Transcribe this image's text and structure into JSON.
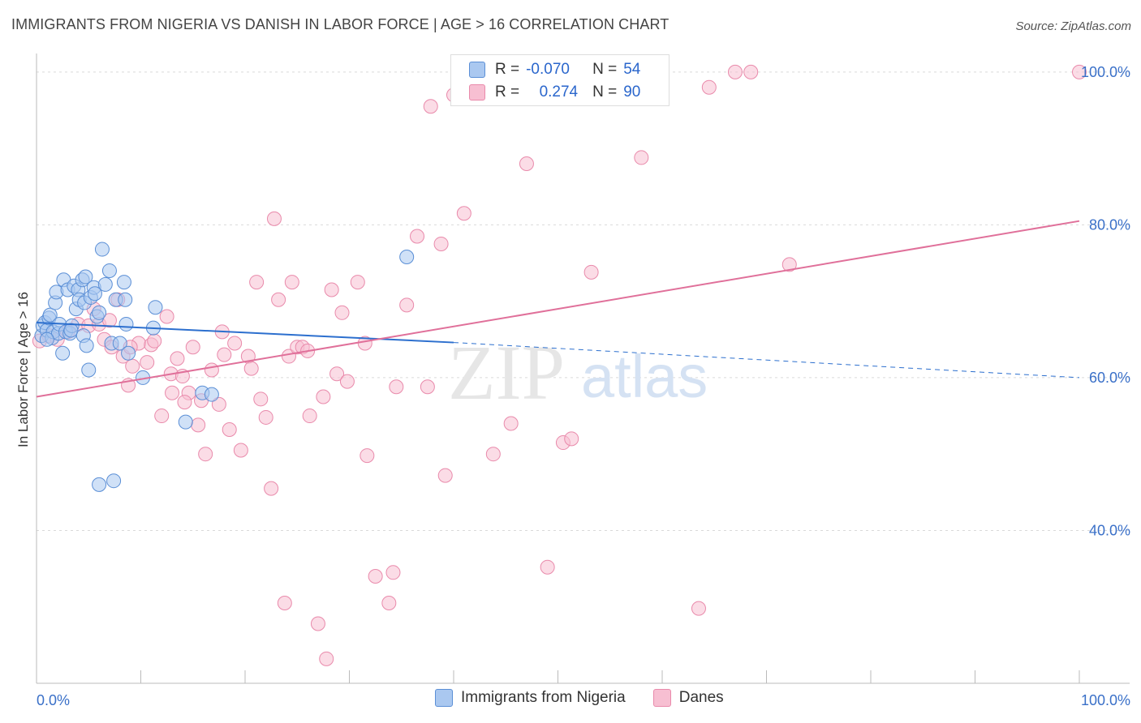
{
  "title": "IMMIGRANTS FROM NIGERIA VS DANISH IN LABOR FORCE | AGE > 16 CORRELATION CHART",
  "source": "Source: ZipAtlas.com",
  "watermark": {
    "zip": "ZIP",
    "atlas": "atlas"
  },
  "legend": {
    "rows": [
      {
        "r_label": "R =",
        "r_value": "-0.070",
        "n_label": "N =",
        "n_value": "54"
      },
      {
        "r_label": "R =",
        "r_value": "0.274",
        "n_label": "N =",
        "n_value": "90"
      }
    ]
  },
  "bottom_legend": [
    "Immigrants from Nigeria",
    "Danes"
  ],
  "colors": {
    "blue_fill": "#aac8f0",
    "blue_stroke": "#5b8fd6",
    "blue_line": "#2c6fce",
    "pink_fill": "#f7bfd2",
    "pink_stroke": "#e98aab",
    "pink_line": "#e0709a",
    "axis_text": "#3a70c8",
    "grid": "#d9d9d9"
  },
  "chart_data": {
    "type": "scatter",
    "xlabel": "",
    "ylabel": "In Labor Force | Age > 16",
    "xlim": [
      0,
      100
    ],
    "ylim": [
      20,
      102
    ],
    "x_tick_labels": [
      "0.0%",
      "100.0%"
    ],
    "y_ticks": [
      40,
      60,
      80,
      100
    ],
    "y_tick_labels": [
      "40.0%",
      "60.0%",
      "80.0%",
      "100.0%"
    ],
    "grid": true,
    "series": [
      {
        "name": "Immigrants from Nigeria",
        "points": [
          [
            0.5,
            65.5
          ],
          [
            0.6,
            66.8
          ],
          [
            0.8,
            67.2
          ],
          [
            1.0,
            66.2
          ],
          [
            1.2,
            67.8
          ],
          [
            1.3,
            68.2
          ],
          [
            1.5,
            65.2
          ],
          [
            1.6,
            66.0
          ],
          [
            1.8,
            69.8
          ],
          [
            1.9,
            71.2
          ],
          [
            2.1,
            65.8
          ],
          [
            2.2,
            67.0
          ],
          [
            2.5,
            63.2
          ],
          [
            2.6,
            72.8
          ],
          [
            2.8,
            66.0
          ],
          [
            3.0,
            71.5
          ],
          [
            3.2,
            65.8
          ],
          [
            3.4,
            66.8
          ],
          [
            3.6,
            72.0
          ],
          [
            3.8,
            69.0
          ],
          [
            4.0,
            71.5
          ],
          [
            4.1,
            70.2
          ],
          [
            4.4,
            72.8
          ],
          [
            4.5,
            65.5
          ],
          [
            4.6,
            69.8
          ],
          [
            4.7,
            73.2
          ],
          [
            4.8,
            64.2
          ],
          [
            5.2,
            70.5
          ],
          [
            5.5,
            71.8
          ],
          [
            5.6,
            71.0
          ],
          [
            5.8,
            68.0
          ],
          [
            6.0,
            68.5
          ],
          [
            6.3,
            76.8
          ],
          [
            6.6,
            72.2
          ],
          [
            7.0,
            74.0
          ],
          [
            7.2,
            64.5
          ],
          [
            7.6,
            70.2
          ],
          [
            8.0,
            64.5
          ],
          [
            8.4,
            72.5
          ],
          [
            8.5,
            70.2
          ],
          [
            8.6,
            67.0
          ],
          [
            8.8,
            63.2
          ],
          [
            10.2,
            60.0
          ],
          [
            11.2,
            66.5
          ],
          [
            11.4,
            69.2
          ],
          [
            14.3,
            54.2
          ],
          [
            15.9,
            58.0
          ],
          [
            16.8,
            57.8
          ],
          [
            35.5,
            75.8
          ],
          [
            6.0,
            46.0
          ],
          [
            7.4,
            46.5
          ],
          [
            1.0,
            65.0
          ],
          [
            5.0,
            61.0
          ],
          [
            3.3,
            66.2
          ]
        ]
      },
      {
        "name": "Danes",
        "points": [
          [
            0.3,
            64.8
          ],
          [
            1.2,
            65.5
          ],
          [
            2.0,
            65.0
          ],
          [
            3.0,
            66.0
          ],
          [
            4.0,
            67.0
          ],
          [
            5.0,
            66.8
          ],
          [
            5.5,
            69.0
          ],
          [
            6.0,
            67.0
          ],
          [
            6.5,
            65.0
          ],
          [
            7.0,
            67.5
          ],
          [
            7.2,
            64.0
          ],
          [
            7.8,
            70.2
          ],
          [
            8.3,
            62.8
          ],
          [
            8.8,
            59.0
          ],
          [
            9.2,
            61.5
          ],
          [
            9.8,
            64.5
          ],
          [
            10.6,
            62.0
          ],
          [
            11.0,
            64.3
          ],
          [
            11.3,
            64.8
          ],
          [
            12.0,
            55.0
          ],
          [
            12.5,
            68.0
          ],
          [
            12.9,
            60.5
          ],
          [
            13.5,
            62.5
          ],
          [
            14.0,
            60.2
          ],
          [
            14.6,
            58.0
          ],
          [
            15.0,
            64.0
          ],
          [
            15.5,
            53.8
          ],
          [
            15.8,
            57.0
          ],
          [
            16.2,
            50.0
          ],
          [
            16.8,
            61.0
          ],
          [
            17.5,
            56.5
          ],
          [
            17.8,
            66.0
          ],
          [
            18.5,
            53.2
          ],
          [
            19.0,
            64.5
          ],
          [
            19.6,
            50.5
          ],
          [
            20.3,
            62.8
          ],
          [
            20.6,
            61.2
          ],
          [
            21.1,
            72.5
          ],
          [
            21.5,
            57.2
          ],
          [
            22.0,
            54.8
          ],
          [
            22.5,
            45.5
          ],
          [
            22.8,
            80.8
          ],
          [
            23.2,
            70.2
          ],
          [
            23.8,
            30.5
          ],
          [
            24.2,
            62.8
          ],
          [
            24.5,
            72.5
          ],
          [
            25.0,
            64.0
          ],
          [
            25.5,
            64.0
          ],
          [
            26.2,
            55.0
          ],
          [
            27.0,
            27.8
          ],
          [
            27.5,
            57.5
          ],
          [
            27.8,
            23.2
          ],
          [
            28.3,
            71.5
          ],
          [
            28.8,
            60.5
          ],
          [
            29.3,
            68.5
          ],
          [
            29.8,
            59.5
          ],
          [
            30.8,
            72.5
          ],
          [
            31.5,
            64.5
          ],
          [
            31.7,
            49.8
          ],
          [
            32.5,
            34.0
          ],
          [
            33.8,
            30.5
          ],
          [
            34.2,
            34.5
          ],
          [
            34.5,
            58.8
          ],
          [
            35.5,
            69.5
          ],
          [
            36.5,
            78.5
          ],
          [
            37.5,
            58.8
          ],
          [
            37.8,
            95.5
          ],
          [
            38.8,
            77.5
          ],
          [
            39.2,
            47.2
          ],
          [
            41.0,
            81.5
          ],
          [
            43.8,
            50.0
          ],
          [
            45.5,
            54.0
          ],
          [
            47.0,
            88.0
          ],
          [
            49.0,
            35.2
          ],
          [
            50.5,
            51.5
          ],
          [
            51.3,
            52.0
          ],
          [
            53.2,
            73.8
          ],
          [
            58.0,
            88.8
          ],
          [
            63.5,
            29.8
          ],
          [
            64.5,
            98.0
          ],
          [
            67.0,
            100.0
          ],
          [
            68.5,
            100.0
          ],
          [
            72.2,
            74.8
          ],
          [
            100.0,
            100.0
          ],
          [
            40.0,
            97.0
          ],
          [
            9.0,
            64.0
          ],
          [
            13.0,
            58.0
          ],
          [
            18.0,
            63.0
          ],
          [
            26.0,
            63.5
          ],
          [
            14.2,
            56.8
          ]
        ]
      }
    ],
    "trend_lines": [
      {
        "name": "Immigrants from Nigeria",
        "x": [
          0,
          40,
          100
        ],
        "y": [
          67.2,
          64.6,
          60.0
        ]
      },
      {
        "name": "Danes",
        "x": [
          0,
          100
        ],
        "y": [
          57.5,
          80.5
        ]
      }
    ]
  }
}
